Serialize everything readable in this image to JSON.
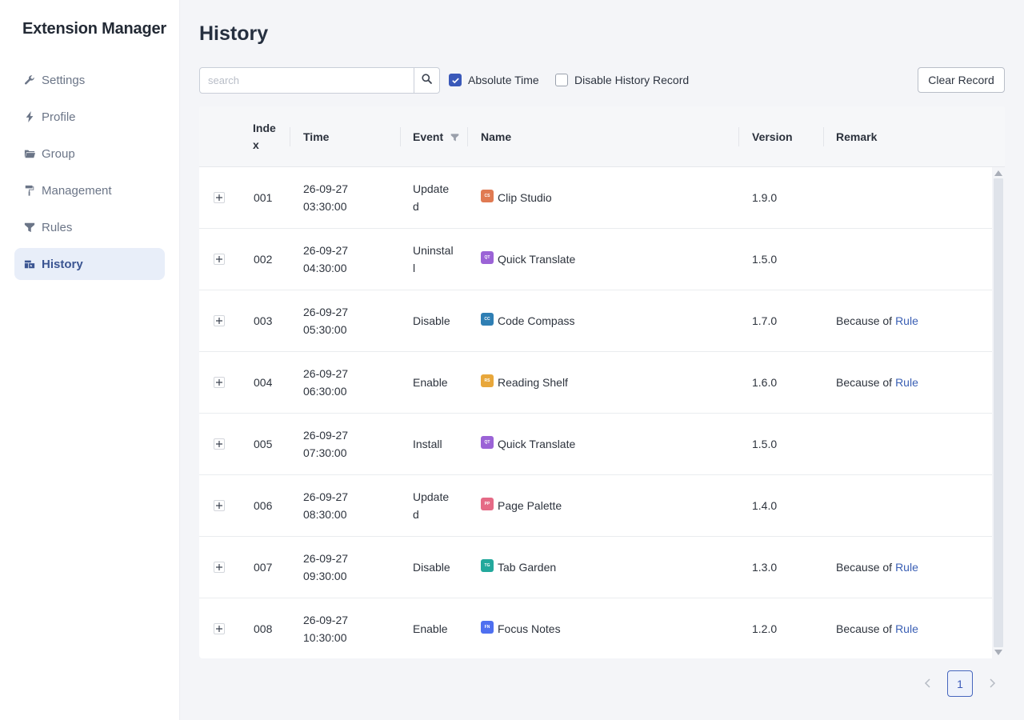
{
  "app": {
    "title": "Extension Manager"
  },
  "sidebar": {
    "items": [
      {
        "label": "Settings",
        "icon": "wrench-icon",
        "active": false
      },
      {
        "label": "Profile",
        "icon": "bolt-icon",
        "active": false
      },
      {
        "label": "Group",
        "icon": "folder-icon",
        "active": false
      },
      {
        "label": "Management",
        "icon": "paint-roller-icon",
        "active": false
      },
      {
        "label": "Rules",
        "icon": "filter-icon",
        "active": false
      },
      {
        "label": "History",
        "icon": "history-icon",
        "active": true
      }
    ]
  },
  "page": {
    "title": "History"
  },
  "toolbar": {
    "search_placeholder": "search",
    "search_value": "",
    "absolute_time_label": "Absolute Time",
    "absolute_time_checked": true,
    "disable_history_label": "Disable History Record",
    "disable_history_checked": false,
    "clear_label": "Clear Record"
  },
  "table": {
    "headers": {
      "index_line1": "Inde",
      "index_line2": "x",
      "time": "Time",
      "event": "Event",
      "name": "Name",
      "version": "Version",
      "remark": "Remark"
    },
    "rows": [
      {
        "index": "001",
        "time_date": "26-09-27",
        "time_clock": "03:30:00",
        "event_line1": "Update",
        "event_line2": "d",
        "icon_abbr": "CS",
        "icon_color": "#e07a52",
        "name": "Clip Studio",
        "version": "1.9.0",
        "remark_prefix": "",
        "remark_link": ""
      },
      {
        "index": "002",
        "time_date": "26-09-27",
        "time_clock": "04:30:00",
        "event_line1": "Uninstal",
        "event_line2": "l",
        "icon_abbr": "QT",
        "icon_color": "#9b63d6",
        "name": "Quick Translate",
        "version": "1.5.0",
        "remark_prefix": "",
        "remark_link": ""
      },
      {
        "index": "003",
        "time_date": "26-09-27",
        "time_clock": "05:30:00",
        "event_line1": "Disable",
        "event_line2": "",
        "icon_abbr": "CC",
        "icon_color": "#2f7fb4",
        "name": "Code Compass",
        "version": "1.7.0",
        "remark_prefix": "Because of",
        "remark_link": "Rule"
      },
      {
        "index": "004",
        "time_date": "26-09-27",
        "time_clock": "06:30:00",
        "event_line1": "Enable",
        "event_line2": "",
        "icon_abbr": "RS",
        "icon_color": "#e8a73b",
        "name": "Reading Shelf",
        "version": "1.6.0",
        "remark_prefix": "Because of",
        "remark_link": "Rule"
      },
      {
        "index": "005",
        "time_date": "26-09-27",
        "time_clock": "07:30:00",
        "event_line1": "Install",
        "event_line2": "",
        "icon_abbr": "QT",
        "icon_color": "#9b63d6",
        "name": "Quick Translate",
        "version": "1.5.0",
        "remark_prefix": "",
        "remark_link": ""
      },
      {
        "index": "006",
        "time_date": "26-09-27",
        "time_clock": "08:30:00",
        "event_line1": "Update",
        "event_line2": "d",
        "icon_abbr": "PP",
        "icon_color": "#e56a86",
        "name": "Page Palette",
        "version": "1.4.0",
        "remark_prefix": "",
        "remark_link": ""
      },
      {
        "index": "007",
        "time_date": "26-09-27",
        "time_clock": "09:30:00",
        "event_line1": "Disable",
        "event_line2": "",
        "icon_abbr": "TG",
        "icon_color": "#23a89c",
        "name": "Tab Garden",
        "version": "1.3.0",
        "remark_prefix": "Because of",
        "remark_link": "Rule"
      },
      {
        "index": "008",
        "time_date": "26-09-27",
        "time_clock": "10:30:00",
        "event_line1": "Enable",
        "event_line2": "",
        "icon_abbr": "FN",
        "icon_color": "#4e6ff0",
        "name": "Focus Notes",
        "version": "1.2.0",
        "remark_prefix": "Because of",
        "remark_link": "Rule"
      }
    ]
  },
  "pagination": {
    "current_page": "1"
  }
}
